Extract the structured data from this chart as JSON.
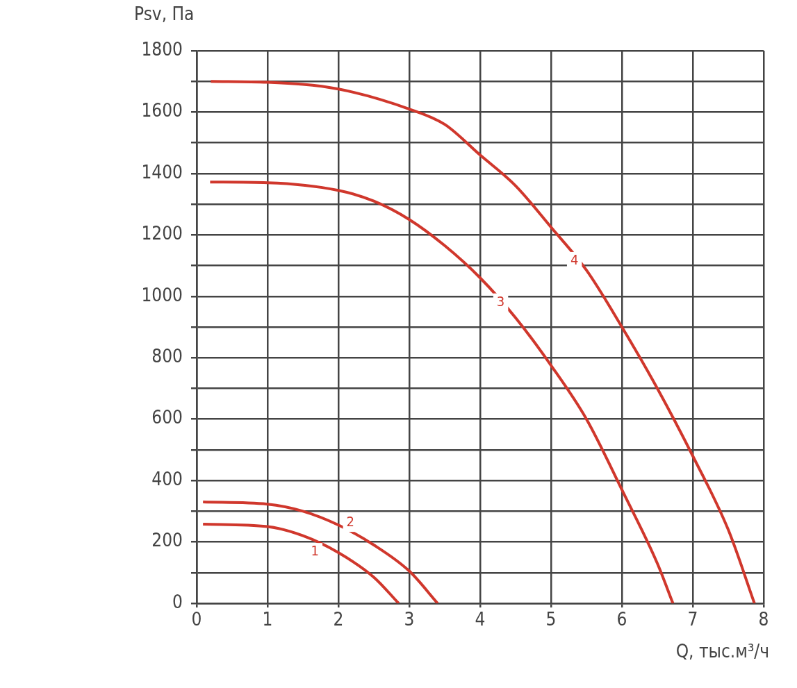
{
  "chart_data": {
    "type": "line",
    "xlabel": "Q, тыс.м³/ч",
    "ylabel": "Psv, Па",
    "xlim": [
      0,
      8
    ],
    "xticks": [
      0,
      1,
      2,
      3,
      4,
      5,
      6,
      7,
      8
    ],
    "ylim": [
      0,
      1800
    ],
    "yticks": [
      0,
      {
        "value": 100,
        "label": null
      },
      200,
      {
        "value": 300,
        "label": null
      },
      400,
      {
        "value": 500,
        "label": null
      },
      600,
      {
        "value": 700,
        "label": null
      },
      800,
      {
        "value": 900,
        "label": null
      },
      1000,
      {
        "value": 1100,
        "label": null
      },
      1200,
      {
        "value": 1300,
        "label": null
      },
      1400,
      {
        "value": 1500,
        "label": null
      },
      1600,
      {
        "value": 1700,
        "label": null
      },
      1800
    ],
    "grid": true,
    "legend": false,
    "marker": "none",
    "line_style": "solid",
    "series": [
      {
        "color": "#d0372c",
        "x": [
          0.09,
          1,
          1.5,
          2,
          2.5,
          2.85
        ],
        "values": [
          258,
          250,
          220,
          165,
          85,
          0
        ]
      },
      {
        "color": "#d0372c",
        "x": [
          0.09,
          1,
          1.5,
          2,
          2.5,
          3,
          3.4
        ],
        "values": [
          330,
          323,
          300,
          255,
          190,
          105,
          0
        ]
      },
      {
        "color": "#d0372c",
        "x": [
          0.19,
          1,
          2,
          2.5,
          3,
          3.5,
          4,
          4.5,
          5,
          5.5,
          6,
          6.5,
          6.72
        ],
        "values": [
          1372,
          1370,
          1345,
          1310,
          1250,
          1165,
          1060,
          930,
          775,
          600,
          370,
          130,
          0
        ]
      },
      {
        "color": "#d0372c",
        "x": [
          0.2,
          1,
          2,
          3,
          3.5,
          4,
          4.5,
          5,
          5.5,
          6,
          6.5,
          7,
          7.5,
          7.87
        ],
        "values": [
          1700,
          1697,
          1675,
          1610,
          1560,
          1460,
          1360,
          1225,
          1085,
          900,
          700,
          480,
          240,
          0
        ]
      }
    ],
    "annotations": [
      {
        "text": "1",
        "x": 1.67,
        "y": 167
      },
      {
        "text": "2",
        "x": 2.17,
        "y": 262
      },
      {
        "text": "3",
        "x": 4.29,
        "y": 980
      },
      {
        "text": "4",
        "x": 5.33,
        "y": 1115
      }
    ]
  }
}
